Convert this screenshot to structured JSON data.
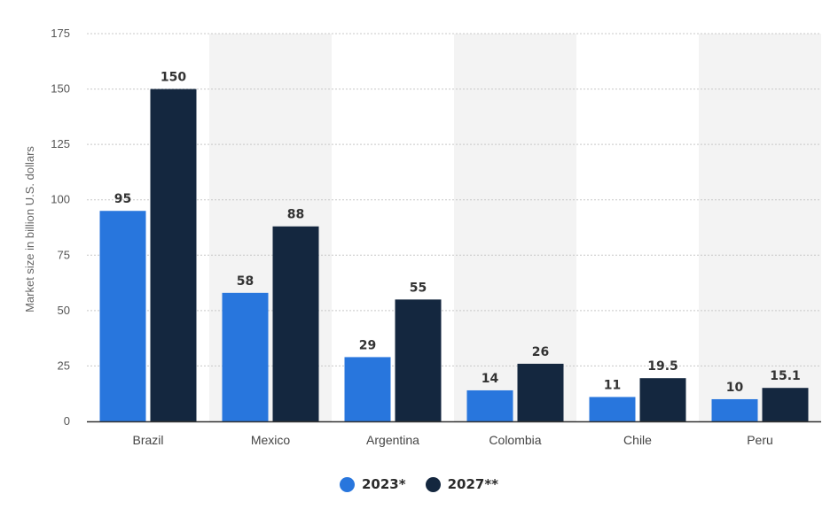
{
  "chart_data": {
    "type": "bar",
    "categories": [
      "Brazil",
      "Mexico",
      "Argentina",
      "Colombia",
      "Chile",
      "Peru"
    ],
    "series": [
      {
        "name": "2023*",
        "values": [
          95,
          58,
          29,
          14,
          11,
          10
        ],
        "labels": [
          "95",
          "58",
          "29",
          "14",
          "11",
          "10"
        ],
        "color": "#2876dd"
      },
      {
        "name": "2027**",
        "values": [
          150,
          88,
          55,
          26,
          19.5,
          15.1
        ],
        "labels": [
          "150",
          "88",
          "55",
          "26",
          "19.5",
          "15.1"
        ],
        "color": "#14273f"
      }
    ],
    "ylabel": "Market size in billion U.S. dollars",
    "ylim": [
      0,
      175
    ],
    "yticks": [
      0,
      25,
      50,
      75,
      100,
      125,
      150,
      175
    ],
    "grid": true,
    "legend": "bottom-center",
    "band_color": "#f3f3f3",
    "grid_color": "#c8c8c8",
    "axis_color": "#333333"
  }
}
